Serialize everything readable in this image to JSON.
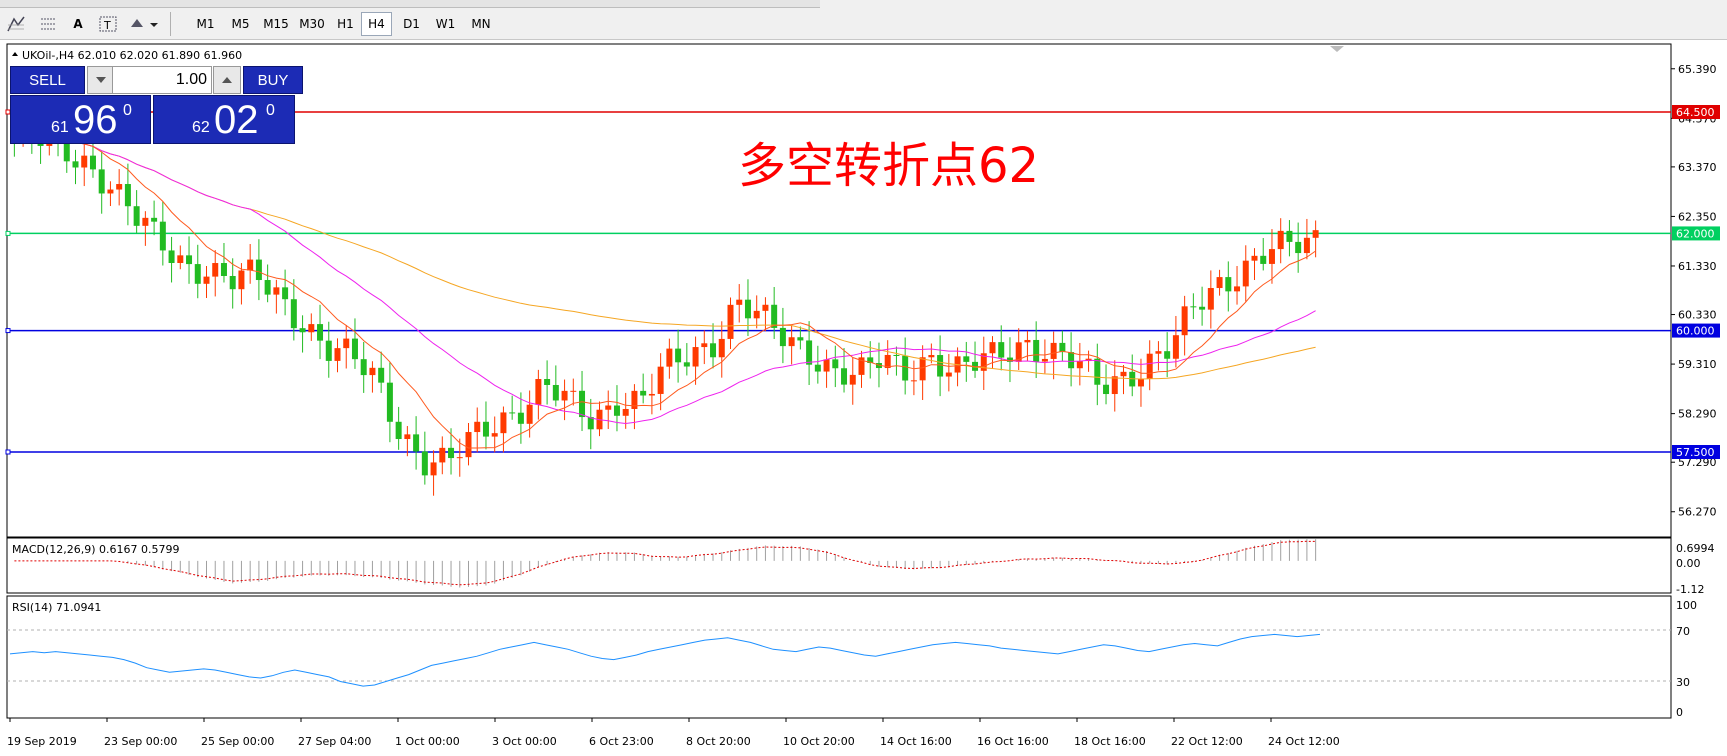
{
  "toolbar": {
    "tools": [
      "grid-icon",
      "period-separators-icon",
      "text-tool-icon",
      "text-label-icon",
      "arrows-icon"
    ],
    "timeframes": [
      "M1",
      "M5",
      "M15",
      "M30",
      "H1",
      "H4",
      "D1",
      "W1",
      "MN"
    ],
    "active_timeframe": "H4"
  },
  "chart": {
    "header": "UKOil-,H4  62.010 62.020 61.890 61.960",
    "annotation_text": "多空转折点62",
    "price_axis_labels": [
      "65.390",
      "64.370",
      "63.370",
      "62.350",
      "61.330",
      "60.330",
      "59.310",
      "58.290",
      "57.290",
      "56.270"
    ],
    "price_range": [
      55.75,
      65.9
    ],
    "horizontal_lines": [
      {
        "price": 64.5,
        "label": "64.500",
        "color": "#e00000"
      },
      {
        "price": 62.0,
        "label": "62.000",
        "color": "#00d060"
      },
      {
        "price": 60.0,
        "label": "60.000",
        "color": "#0000e0"
      },
      {
        "price": 57.5,
        "label": "57.500",
        "color": "#0000e0"
      }
    ],
    "time_labels": [
      "19 Sep 2019",
      "23 Sep 00:00",
      "25 Sep 00:00",
      "27 Sep 04:00",
      "1 Oct 00:00",
      "3 Oct 00:00",
      "6 Oct 23:00",
      "8 Oct 20:00",
      "10 Oct 20:00",
      "14 Oct 16:00",
      "16 Oct 16:00",
      "18 Oct 16:00",
      "22 Oct 12:00",
      "24 Oct 12:00"
    ],
    "bull_color": "#ff3a00",
    "bear_color": "#22bb22",
    "ma_colors": {
      "fast": "#ff5a1e",
      "mid": "#ee22ee",
      "slow": "#f5a623"
    },
    "close_path": [
      64.0,
      63.9,
      63.7,
      63.5,
      63.0,
      62.3,
      61.8,
      61.4,
      61.3,
      61.0,
      61.1,
      60.7,
      60.2,
      59.6,
      59.4,
      59.0,
      58.0,
      57.3,
      57.2,
      57.8,
      58.2,
      58.4,
      58.8,
      58.5,
      58.2,
      58.6,
      58.5,
      59.2,
      59.5,
      59.8,
      60.6,
      60.2,
      59.8,
      59.6,
      59.2,
      59.0,
      59.4,
      59.2,
      59.5,
      59.1,
      59.3,
      59.6,
      59.8,
      59.5,
      59.3,
      58.9,
      59.1,
      59.3,
      59.6,
      60.5,
      61.0,
      61.3,
      61.6,
      61.7,
      61.9
    ]
  },
  "trade": {
    "sell_label": "SELL",
    "buy_label": "BUY",
    "lot": "1.00",
    "bid_small": "61",
    "bid_big": "96",
    "bid_sup": "0",
    "ask_small": "62",
    "ask_big": "02",
    "ask_sup": "0"
  },
  "macd": {
    "label": "MACD(12,26,9) 0.6167 0.5799",
    "axis_labels": [
      "0.6994",
      "0.00",
      "-1.12"
    ],
    "range": [
      -1.3,
      0.9
    ]
  },
  "rsi": {
    "label": "RSI(14) 71.0941",
    "axis_labels": [
      "100",
      "70",
      "30",
      "0"
    ],
    "levels": [
      70,
      30
    ],
    "values": [
      54,
      55,
      56,
      55,
      56,
      55,
      54,
      53,
      52,
      51,
      49,
      46,
      42,
      40,
      38,
      39,
      40,
      41,
      40,
      38,
      36,
      34,
      33,
      35,
      38,
      40,
      38,
      36,
      34,
      30,
      28,
      26,
      27,
      30,
      33,
      36,
      40,
      44,
      46,
      48,
      50,
      52,
      55,
      58,
      60,
      62,
      64,
      62,
      60,
      58,
      55,
      52,
      50,
      49,
      51,
      53,
      56,
      58,
      60,
      62,
      64,
      66,
      67,
      68,
      66,
      64,
      61,
      58,
      57,
      56,
      58,
      60,
      59,
      57,
      55,
      53,
      52,
      54,
      56,
      58,
      60,
      62,
      63,
      64,
      63,
      62,
      61,
      59,
      58,
      57,
      56,
      55,
      54,
      56,
      58,
      60,
      62,
      61,
      59,
      57,
      56,
      58,
      60,
      62,
      63,
      62,
      61,
      64,
      67,
      69,
      70,
      71,
      70,
      69,
      70,
      71
    ]
  }
}
